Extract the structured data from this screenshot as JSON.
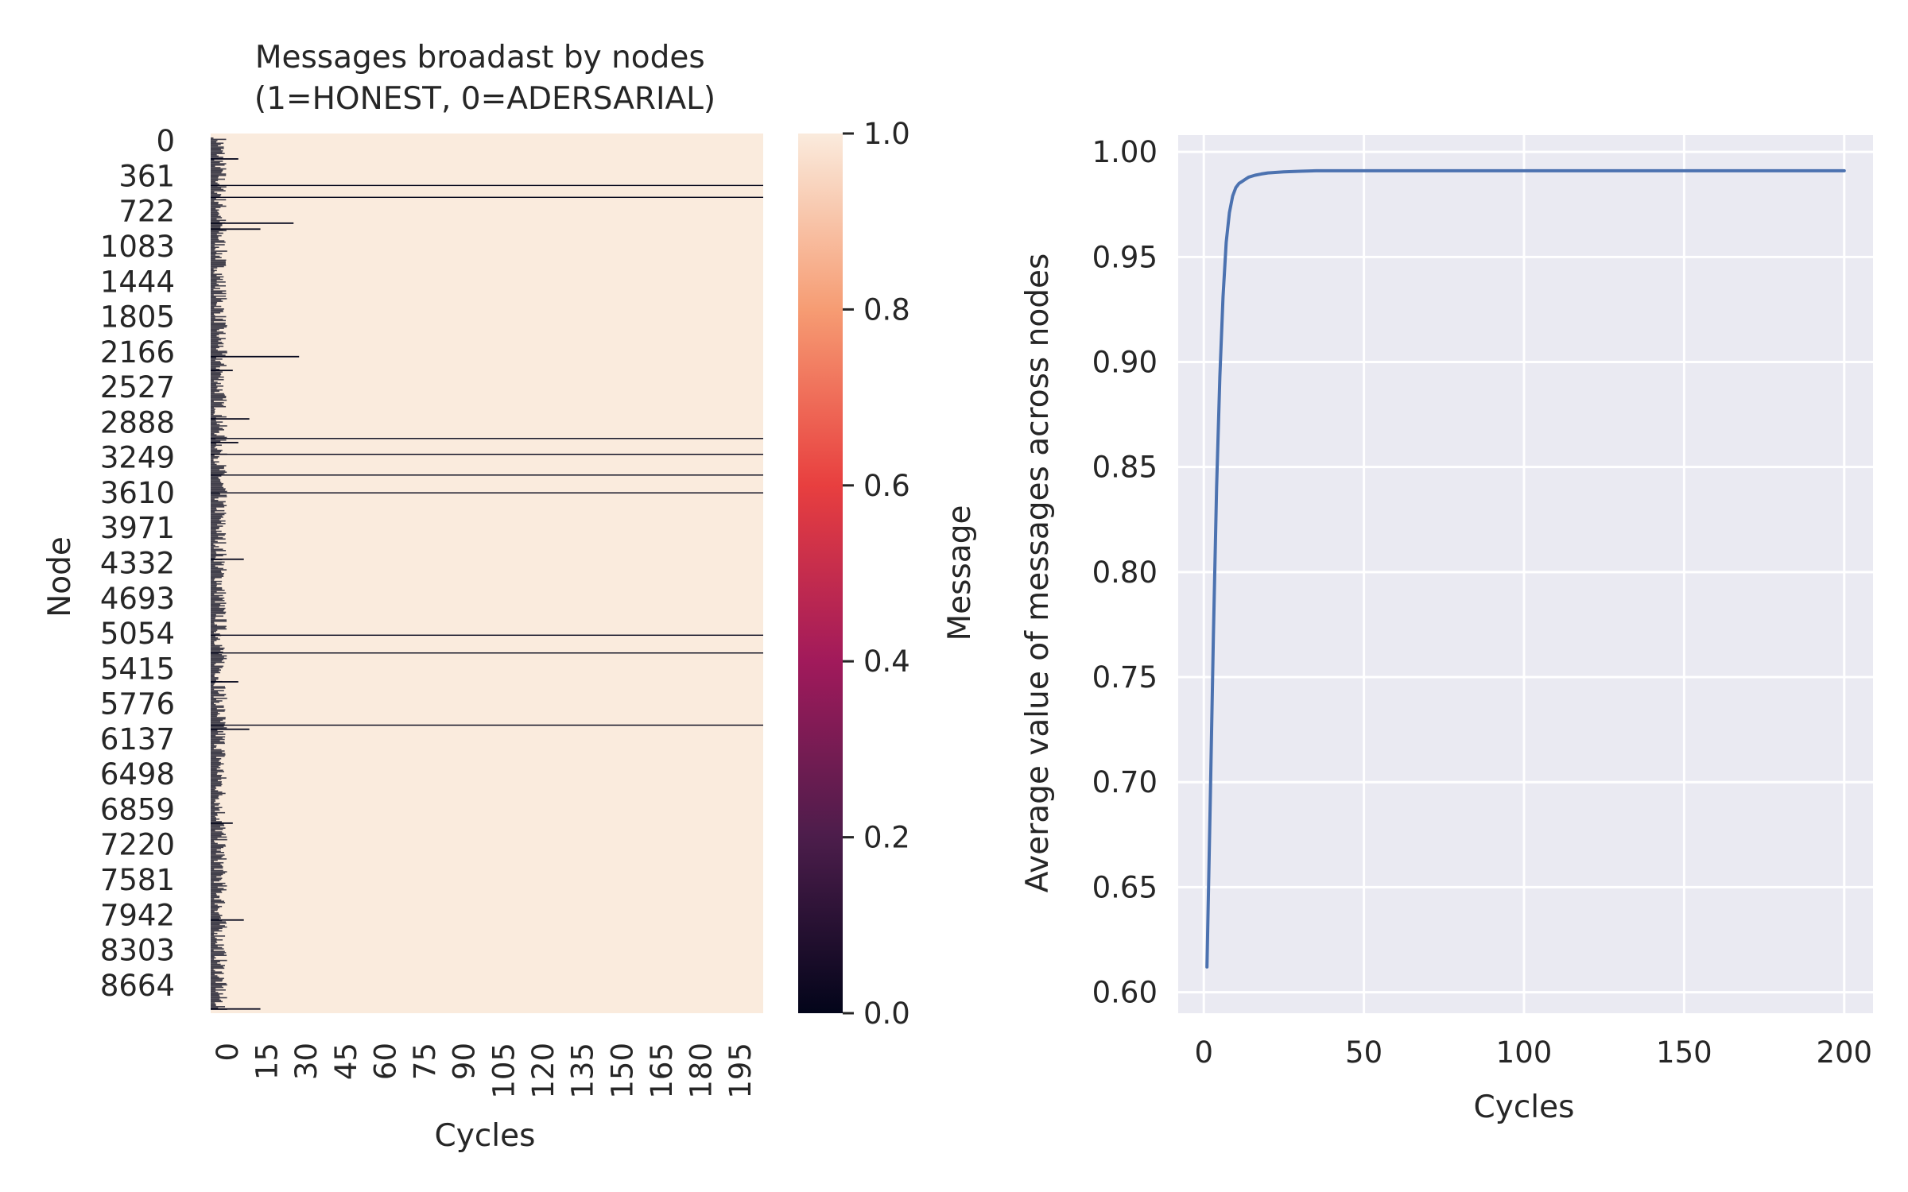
{
  "chart_data": [
    {
      "type": "heatmap",
      "title": "Messages broadast by nodes\n(1=HONEST, 0=ADERSARIAL)",
      "xlabel": "Cycles",
      "ylabel": "Node",
      "x_tick_labels": [
        "0",
        "15",
        "30",
        "45",
        "60",
        "75",
        "90",
        "105",
        "120",
        "135",
        "150",
        "165",
        "180",
        "195"
      ],
      "y_tick_labels": [
        "0",
        "361",
        "722",
        "1083",
        "1444",
        "1805",
        "2166",
        "2527",
        "2888",
        "3249",
        "3610",
        "3971",
        "4332",
        "4693",
        "5054",
        "5415",
        "5776",
        "6137",
        "6498",
        "6859",
        "7220",
        "7581",
        "7942",
        "8303",
        "8664"
      ],
      "x_range": [
        0,
        200
      ],
      "y_range": [
        0,
        8900
      ],
      "value_range": [
        0,
        1
      ],
      "colorbar": {
        "label": "Message",
        "ticks": [
          "0.0",
          "0.2",
          "0.4",
          "0.6",
          "0.8",
          "1.0"
        ],
        "colors": [
          "#03051a",
          "#4c1d4b",
          "#a11a5b",
          "#e83f3f",
          "#f69c73",
          "#faebdd"
        ]
      },
      "dominant_value": 1,
      "persistent_adversarial_rows": [
        520,
        640,
        3080,
        3240,
        3450,
        3630,
        5070,
        5250,
        5980
      ],
      "transient_adversarial_rows": [
        {
          "node": 250,
          "last_cycle": 10
        },
        {
          "node": 900,
          "last_cycle": 30
        },
        {
          "node": 960,
          "last_cycle": 18
        },
        {
          "node": 2250,
          "last_cycle": 32
        },
        {
          "node": 2390,
          "last_cycle": 8
        },
        {
          "node": 2880,
          "last_cycle": 14
        },
        {
          "node": 3120,
          "last_cycle": 10
        },
        {
          "node": 4300,
          "last_cycle": 12
        },
        {
          "node": 5540,
          "last_cycle": 10
        },
        {
          "node": 6020,
          "last_cycle": 14
        },
        {
          "node": 6970,
          "last_cycle": 8
        },
        {
          "node": 7950,
          "last_cycle": 12
        },
        {
          "node": 8850,
          "last_cycle": 18
        }
      ]
    },
    {
      "type": "line",
      "title": "",
      "xlabel": "Cycles",
      "ylabel": "Average value of messages across nodes",
      "xlim": [
        -8,
        209
      ],
      "ylim": [
        0.59,
        1.008
      ],
      "x_ticks": [
        0,
        50,
        100,
        150,
        200
      ],
      "y_ticks": [
        0.6,
        0.65,
        0.7,
        0.75,
        0.8,
        0.85,
        0.9,
        0.95,
        1.0
      ],
      "grid": true,
      "series": [
        {
          "color": "#4c72b0",
          "x": [
            1,
            2,
            3,
            4,
            5,
            6,
            7,
            8,
            9,
            10,
            11,
            12,
            13,
            14,
            16,
            18,
            20,
            25,
            30,
            35,
            40,
            50,
            100,
            150,
            200
          ],
          "y": [
            0.612,
            0.69,
            0.77,
            0.84,
            0.893,
            0.931,
            0.957,
            0.971,
            0.979,
            0.983,
            0.985,
            0.986,
            0.987,
            0.988,
            0.9889,
            0.9895,
            0.99,
            0.9905,
            0.9908,
            0.991,
            0.991,
            0.991,
            0.991,
            0.991,
            0.991
          ]
        }
      ]
    }
  ]
}
